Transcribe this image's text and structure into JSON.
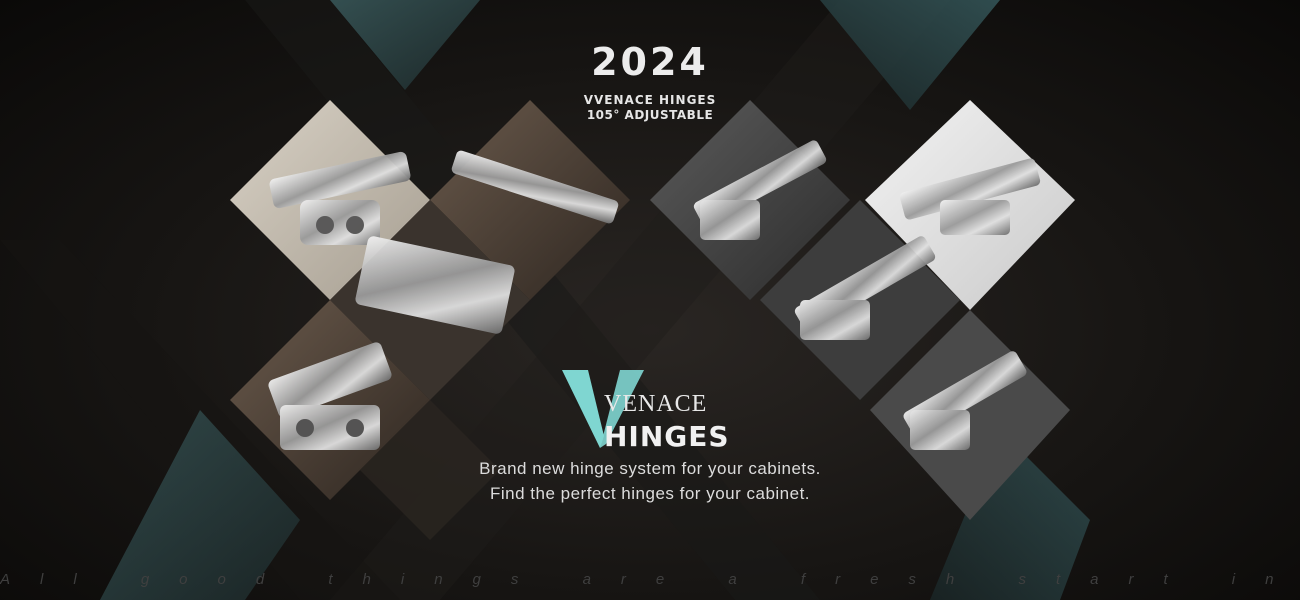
{
  "header": {
    "year": "2024",
    "subtitle_line1": "VVENACE HINGES",
    "subtitle_line2": "105° ADJUSTABLE"
  },
  "logo": {
    "brand": "VENACE",
    "product": "HINGES",
    "icon": "v-monogram-icon"
  },
  "tagline": {
    "line1": "Brand new hinge system for your cabinets.",
    "line2": "Find the perfect hinges for your cabinet."
  },
  "footer": {
    "text": "All good things are a fresh start in home life"
  },
  "colors": {
    "accent": "#7fd6d1",
    "teal_panel": "#2f4a4c",
    "text": "#ececec",
    "background": "#141210"
  }
}
